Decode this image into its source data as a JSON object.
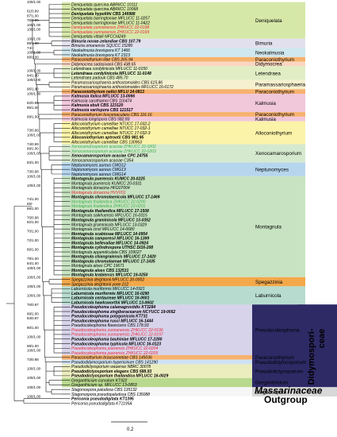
{
  "taxa": [
    {
      "name": "Deniquelata quercina ABRIICC 10111",
      "style": "normal"
    },
    {
      "name": "Deniquelata quercina ABRIICC 10068",
      "style": "normal"
    },
    {
      "name": "Deniquelata hypolithi CBS 146988",
      "style": "bold"
    },
    {
      "name": "Deniquelata barringtoniae MFLUCC 11-0257",
      "style": "normal"
    },
    {
      "name": "Deniquelata barringtoniae MFLUCC 11-0422",
      "style": "normal"
    },
    {
      "name": "Deniquelata yunnanensis ZHKUCC 22-0198",
      "style": "red"
    },
    {
      "name": "Deniquelata yunnanensis ZHKUCC 22-0199",
      "style": "red"
    },
    {
      "name": "Deniquelata vittalii NFCCI4249",
      "style": "normal"
    },
    {
      "name": "Bimuria novae-zelandiae CBS 107.79",
      "style": "bold"
    },
    {
      "name": "Bimuria omanensis SQUCC 15280",
      "style": "normal"
    },
    {
      "name": "Neokalmusia brevispora KT 1466",
      "style": "normal"
    },
    {
      "name": "Neokalmusia brevispora KT 2313",
      "style": "normal"
    },
    {
      "name": "Paraconiothyrium lilae CBS 265.94",
      "style": "normal"
    },
    {
      "name": "Didymocrea sadasivanii CBS 438.65",
      "style": "normal"
    },
    {
      "name": "Letendraea cordylinicola MFLUCC 11-0150",
      "style": "normal"
    },
    {
      "name": "Letendraea cordylinicola MFLUCC 11-0148",
      "style": "bold"
    },
    {
      "name": "Letendraea padouk CBS 485.70",
      "style": "normal"
    },
    {
      "name": "Paramassariosphaeria anthostomoides CBS 615.86",
      "style": "normal"
    },
    {
      "name": "Paramassariosphaeria anthostomoides MFLUCC 16-0172",
      "style": "normal"
    },
    {
      "name": "Paraconiothyrium nelloi MFLU 14-0813",
      "style": "bold"
    },
    {
      "name": "Kalmusia italica MFLUCC 13-0066",
      "style": "bold"
    },
    {
      "name": "Kalmusia sarothamni CBS 116474",
      "style": "normal"
    },
    {
      "name": "Kalmusia ebuli CBS 123120",
      "style": "bold"
    },
    {
      "name": "Kalmusia variispora CBS 121517",
      "style": "bold"
    },
    {
      "name": "Paraconiothyrium fuscomaculans CBS 116.16",
      "style": "normal"
    },
    {
      "name": "Kalmusia longispora CBS 582.83",
      "style": "normal"
    },
    {
      "name": "Alloconiothyrium camelliae NTUCC 17-032-2",
      "style": "normal"
    },
    {
      "name": "Alloconiothyrium camelliae NTUCC 17-032-1",
      "style": "normal"
    },
    {
      "name": "Alloconiothyrium camelliae NTUCC 17-032-3",
      "style": "normal"
    },
    {
      "name": "Alloconiothyrium aptrootii CBS 981.95",
      "style": "bold"
    },
    {
      "name": "Alloconiothyrium camelliae CBS 130963",
      "style": "normal"
    },
    {
      "name": "Xenocamarosporium acaciae ZHKUCC 22-0202",
      "style": "green"
    },
    {
      "name": "Xenocamarosporium acaciae ZHKUCC 22-0203",
      "style": "green"
    },
    {
      "name": "Xenocamarosporium acaciae CPC 24755",
      "style": "bold"
    },
    {
      "name": "Xenocamarosporium acaciae C354",
      "style": "normal"
    },
    {
      "name": "Neptunomyces aureus CMG12",
      "style": "normal"
    },
    {
      "name": "Neptunomyces aureus CMG13",
      "style": "normal"
    },
    {
      "name": "Neptunomyces aureus CMG14",
      "style": "normal"
    },
    {
      "name": "Montagnula puerensis KUMCC 20-0225",
      "style": "bold"
    },
    {
      "name": "Montagnula puerensis KUMCC 20-0331",
      "style": "normal"
    },
    {
      "name": "Montagnula donacina HFG07004",
      "style": "normal"
    },
    {
      "name": "Montagnula donacina HVVV01",
      "style": "red"
    },
    {
      "name": "Montagnula chromolaenicola MFLUCC 17-1469",
      "style": "bold"
    },
    {
      "name": "Montagnula thailandica ZHKUCC 22-0200",
      "style": "green"
    },
    {
      "name": "Montagnula thailandica ZHKUCC 22-0201",
      "style": "green"
    },
    {
      "name": "Montagnula thailandica MFLUCC 17-1508",
      "style": "bold"
    },
    {
      "name": "Montagnula saikhuensis MFLUCC 16-0315",
      "style": "normal"
    },
    {
      "name": "Montagnula graminicola MFLUCC 13-0352",
      "style": "bold"
    },
    {
      "name": "Montagnula graminicola MFLUCC 13-0329",
      "style": "normal"
    },
    {
      "name": "Montagnula cirsii MFLUCC 14-0680",
      "style": "normal"
    },
    {
      "name": "Montagnula scabiosae MFLUCC 14-0954",
      "style": "bold"
    },
    {
      "name": "Montagnula camporesii MFLUCC 16-1369",
      "style": "bold"
    },
    {
      "name": "Montagnula bellevaliae MFLUCC 14-0924",
      "style": "bold"
    },
    {
      "name": "Montagnula cylindrospora UTHSC DI16-208",
      "style": "bold"
    },
    {
      "name": "Montagnula appendiculata CBS 109027",
      "style": "normal"
    },
    {
      "name": "Montagnula chiangraiensis MFLUCC 17-1420",
      "style": "bold"
    },
    {
      "name": "Montagnula chromolaenae MFLUCC 17-1435",
      "style": "bold"
    },
    {
      "name": "Montagnula aloes CPC 19671",
      "style": "normal"
    },
    {
      "name": "Montagnula aloes CBS 132531",
      "style": "bold"
    },
    {
      "name": "Montagnula krabiensis MFLUCC 16-0250",
      "style": "bold"
    },
    {
      "name": "Spegazzinia deightonii MFLUCC 20-0002",
      "style": "normal"
    },
    {
      "name": "Spegazzinia deightonii yone 212",
      "style": "normal"
    },
    {
      "name": "Laburnicola muriformis MFLUCC 14-0921",
      "style": "normal"
    },
    {
      "name": "Laburnicola muriformis MFLUCC 16-0290",
      "style": "bold"
    },
    {
      "name": "Laburnicola centaureae MFLUCC 16-0601",
      "style": "bold"
    },
    {
      "name": "Laburnicola hawksworthii MFLUCC 13-0602",
      "style": "bold"
    },
    {
      "name": "Pseudocoleophoma calamagrostidis KT3284",
      "style": "bold"
    },
    {
      "name": "Pseudocoleophoma zingiberacearum NCYUCC 19-0052",
      "style": "bold"
    },
    {
      "name": "Pseudocoleophoma polygonicola KT731",
      "style": "bold"
    },
    {
      "name": "Pseudocoleophoma rusci MFLUCC 16-1444",
      "style": "bold"
    },
    {
      "name": "Pseudocoleophoma flavescens CBS 178.93",
      "style": "normal"
    },
    {
      "name": "Pseudocoleophoma yunnanensis ZHKUCC 22-0196",
      "style": "red"
    },
    {
      "name": "Pseudocoleophoma yunnanensis ZHKUCC 22-0197",
      "style": "red"
    },
    {
      "name": "Pseudocoleophoma bauhiniae MFLUCC 17-2280",
      "style": "bold"
    },
    {
      "name": "Pseudocoleophoma typhicola MFLUCC 16-0123",
      "style": "bold"
    },
    {
      "name": "Pseudocoleophoma puerensis ZHKUCC 22-0204",
      "style": "red"
    },
    {
      "name": "Pseudocoleophoma puerensis ZHKUCC 22-0205",
      "style": "red"
    },
    {
      "name": "Paraconiothyrium brousonnetiae CBS 145036",
      "style": "normal"
    },
    {
      "name": "Pseudodidymosporium hypericinum CBS 141290",
      "style": "normal"
    },
    {
      "name": "Pseudodictyosporium wauense NBRC 30078",
      "style": "normal"
    },
    {
      "name": "Pseudodictyosporium elegans CBS 688.93",
      "style": "bold"
    },
    {
      "name": "Pseudodictyosporium thailandica MFLUCC 16-0029",
      "style": "bold"
    },
    {
      "name": "Greganthicium curvulum KT922",
      "style": "normal"
    },
    {
      "name": "Greganthicium sp. MFLUCC 13-0853",
      "style": "normal"
    },
    {
      "name": "Stagonospora paludosa CBS 135132",
      "style": "normal"
    },
    {
      "name": "Stagonospora pseudopaludosa CBS 135088",
      "style": "normal"
    },
    {
      "name": "Periconia pseudodigitata KT1395",
      "style": "bold"
    },
    {
      "name": "Periconia pseudodigitata KT1195A",
      "style": "normal"
    }
  ],
  "support_values": [
    {
      "row": 0,
      "text": "100/1.00"
    },
    {
      "row": 2,
      "text": "61/0.99"
    },
    {
      "row": 3,
      "text": "87/1.00"
    },
    {
      "row": 5,
      "text": "100/1.00"
    },
    {
      "row": 4,
      "text": "76/0.99"
    },
    {
      "row": 6,
      "text": "100/1.00"
    },
    {
      "row": 8,
      "text": "100/1.00"
    },
    {
      "row": 9,
      "text": "89/1.00"
    },
    {
      "row": 10,
      "text": "74/-"
    },
    {
      "row": 11,
      "text": "100/1.00"
    },
    {
      "row": 12,
      "text": "99/1.00"
    },
    {
      "row": 15,
      "text": "100/1.00"
    },
    {
      "row": 16,
      "text": "94/1.00"
    },
    {
      "row": 17,
      "text": "100/1.00"
    },
    {
      "row": 19,
      "text": "96/1.00"
    },
    {
      "row": 20,
      "text": "100/1.00"
    },
    {
      "row": 22,
      "text": "82/0.95"
    },
    {
      "row": 23,
      "text": "85/1.00"
    },
    {
      "row": 25,
      "text": "99/1.00"
    },
    {
      "row": 28,
      "text": "73/0.96"
    },
    {
      "row": 29,
      "text": "100/1.00"
    },
    {
      "row": 31,
      "text": "74/0.99"
    },
    {
      "row": 32,
      "text": "99/1.00"
    },
    {
      "row": 33,
      "text": "100/1.00"
    },
    {
      "row": 35,
      "text": "83/1.00"
    },
    {
      "row": 37,
      "text": "73/0.98"
    },
    {
      "row": 38,
      "text": "100/1.00"
    },
    {
      "row": 40,
      "text": "100/1.00"
    },
    {
      "row": 43,
      "text": "74/1.00"
    },
    {
      "row": 44,
      "text": "65/-"
    },
    {
      "row": 45,
      "text": "88/1.00"
    },
    {
      "row": 47,
      "text": "76/0.98"
    },
    {
      "row": 48,
      "text": "92/1.00"
    },
    {
      "row": 50,
      "text": "70/1.00"
    },
    {
      "row": 52,
      "text": "72/1.00"
    },
    {
      "row": 54,
      "text": "89/1.00"
    },
    {
      "row": 56,
      "text": "79/1.00"
    },
    {
      "row": 57,
      "text": "84/1.00"
    },
    {
      "row": 58,
      "text": "100/1.00"
    },
    {
      "row": 60,
      "text": "100/1.00"
    },
    {
      "row": 62,
      "text": "100/1.00"
    },
    {
      "row": 64,
      "text": "100/1.00"
    },
    {
      "row": 66,
      "text": "76/0.97"
    },
    {
      "row": 68,
      "text": "99/1.00"
    },
    {
      "row": 69,
      "text": "93/0.97"
    },
    {
      "row": 71,
      "text": "90/1.00"
    },
    {
      "row": 73,
      "text": "100/1.00"
    },
    {
      "row": 75,
      "text": "98/1.00"
    },
    {
      "row": 76,
      "text": "100/1.00"
    },
    {
      "row": 78,
      "text": "73/0.98"
    },
    {
      "row": 80,
      "text": "100/1.00"
    },
    {
      "row": 82,
      "text": "100/1.00"
    },
    {
      "row": 84,
      "text": "100/1.00"
    },
    {
      "row": 86,
      "text": "100/1.00"
    }
  ],
  "clades": [
    {
      "name": "Deniquelata",
      "from": 0,
      "to": 7,
      "color": "#d6e8a8"
    },
    {
      "name": "Bimuria",
      "from": 8,
      "to": 9,
      "color": "#e3e0ee"
    },
    {
      "name": "Neokalmusia",
      "from": 10,
      "to": 11,
      "color": "#cfe7ee"
    },
    {
      "name": "Paraconiothyrium",
      "from": 12,
      "to": 12,
      "color": "#f7b26e"
    },
    {
      "name": "Didymocrea",
      "from": 13,
      "to": 13,
      "color": "#fad6c2"
    },
    {
      "name": "Letendraea",
      "from": 14,
      "to": 16,
      "color": "#e1eec4"
    },
    {
      "name": "Paramassariosphaeria",
      "from": 17,
      "to": 18,
      "color": "#f6f0cf"
    },
    {
      "name": "Paraconiothyrium",
      "from": 19,
      "to": 19,
      "color": "#f7b26e"
    },
    {
      "name": "Kalmusia",
      "from": 20,
      "to": 23,
      "color": "#f1c7da"
    },
    {
      "name": "Paraconiothyrium",
      "from": 24,
      "to": 24,
      "color": "#f7b26e"
    },
    {
      "name": "Kalmusia",
      "from": 25,
      "to": 25,
      "color": "#f1c7da"
    },
    {
      "name": "Alloconiothyrium",
      "from": 26,
      "to": 30,
      "color": "#fbf3a8"
    },
    {
      "name": "Xenocamarosporium",
      "from": 31,
      "to": 34,
      "color": "#d5e9ce"
    },
    {
      "name": "Neptunomyces",
      "from": 35,
      "to": 37,
      "color": "#b6d6ee"
    },
    {
      "name": "Montagnula",
      "from": 38,
      "to": 59,
      "color": "#c7e3c1"
    },
    {
      "name": "Spegazzinia",
      "from": 60,
      "to": 61,
      "color": "#f3a84a"
    },
    {
      "name": "Laburnicola",
      "from": 62,
      "to": 65,
      "color": "#b7dccf"
    },
    {
      "name": "Pseudocoleophoma",
      "from": 66,
      "to": 76,
      "color": "#d7d3ea"
    },
    {
      "name": "Paraconiothyrium",
      "from": 77,
      "to": 77,
      "color": "#f7b26e"
    },
    {
      "name": "Pseudodidymosporium",
      "from": 78,
      "to": 78,
      "color": "#cfe1f2"
    },
    {
      "name": "Pseudodictyosporium",
      "from": 79,
      "to": 81,
      "color": "#ecedbe"
    },
    {
      "name": "Greganthicium",
      "from": 82,
      "to": 83,
      "color": "#b9d98e"
    },
    {
      "name": "Stagonospora",
      "from": 84,
      "to": 85,
      "color": "#f6f6f6"
    }
  ],
  "groups": {
    "family_line1": "Didymospori-",
    "family_line2": "ceae",
    "massarinaceae": "Massarinaceae",
    "outgroup": "Outgroup"
  },
  "scale_bar": {
    "label": "0.2"
  },
  "colors": {
    "red_taxon": "#e8243a",
    "green_taxon": "#3fae49",
    "tree_line": "#1a1a1a",
    "didymospori_band": "#2e2a66",
    "massarinaceae_band": "#d8d8d8",
    "outgroup_band": "#ffffff"
  }
}
